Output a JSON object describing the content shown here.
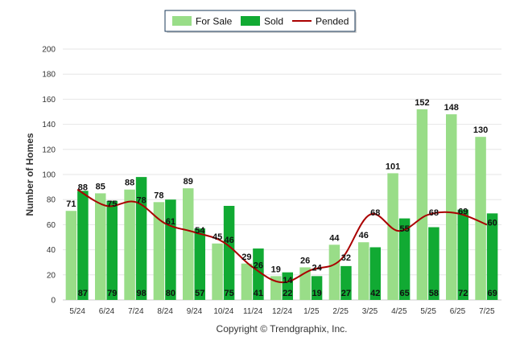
{
  "chart_data": {
    "type": "bar",
    "title": "",
    "xlabel": "",
    "ylabel": "Number of Homes",
    "ylim": [
      0,
      200
    ],
    "yticks": [
      0,
      20,
      40,
      60,
      80,
      100,
      120,
      140,
      160,
      180,
      200
    ],
    "grid": true,
    "legend_position": "top-center",
    "categories": [
      "5/24",
      "6/24",
      "7/24",
      "8/24",
      "9/24",
      "10/24",
      "11/24",
      "12/24",
      "1/25",
      "2/25",
      "3/25",
      "4/25",
      "5/25",
      "6/25",
      "7/25"
    ],
    "series": [
      {
        "name": "For Sale",
        "type": "bar",
        "color": "#99dd88",
        "values": [
          71,
          85,
          88,
          78,
          89,
          45,
          29,
          19,
          26,
          44,
          46,
          101,
          152,
          148,
          130
        ]
      },
      {
        "name": "Sold",
        "type": "bar",
        "color": "#11aa33",
        "values": [
          87,
          79,
          98,
          80,
          57,
          75,
          41,
          22,
          19,
          27,
          42,
          65,
          58,
          72,
          69
        ]
      },
      {
        "name": "Pended",
        "type": "line",
        "color": "#aa0000",
        "values": [
          88,
          75,
          78,
          61,
          54,
          46,
          26,
          14,
          24,
          32,
          68,
          55,
          68,
          69,
          60
        ]
      }
    ],
    "footer": "Copyright © Trendgraphix, Inc."
  }
}
